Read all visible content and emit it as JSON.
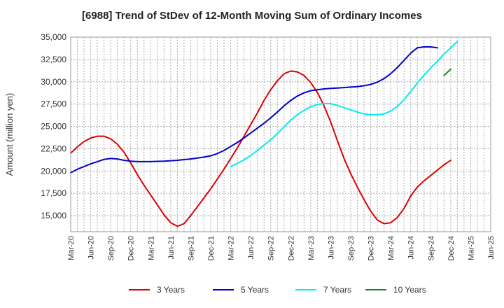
{
  "chart_data": {
    "type": "line",
    "title": "[6988]  Trend of StDev of 12-Month Moving Sum of Ordinary Incomes",
    "xlabel": "",
    "ylabel": "Amount (million yen)",
    "ylim": [
      13200,
      35000
    ],
    "y_ticks": [
      15000,
      17500,
      20000,
      22500,
      25000,
      27500,
      30000,
      32500,
      35000
    ],
    "y_tick_labels": [
      "15,000",
      "17,500",
      "20,000",
      "22,500",
      "25,000",
      "27,500",
      "30,000",
      "32,500",
      "35,000"
    ],
    "x_tick_labels": [
      "Mar-20",
      "Jun-20",
      "Sep-20",
      "Dec-20",
      "Mar-21",
      "Jun-21",
      "Sep-21",
      "Dec-21",
      "Mar-22",
      "Jun-22",
      "Sep-22",
      "Dec-22",
      "Mar-23",
      "Jun-23",
      "Sep-23",
      "Dec-23",
      "Mar-24",
      "Jun-24",
      "Sep-24",
      "Dec-24",
      "Mar-25",
      "Jun-25"
    ],
    "x_index_range": [
      0,
      63
    ],
    "grid": true,
    "legend_position": "bottom",
    "series": [
      {
        "name": "3 Years",
        "color": "#dd0000",
        "start_index": 0,
        "values": [
          22000,
          22700,
          23300,
          23700,
          23900,
          23900,
          23600,
          23000,
          22100,
          20900,
          19600,
          18400,
          17300,
          16200,
          15100,
          14200,
          13800,
          14100,
          15000,
          16000,
          17000,
          18000,
          19100,
          20200,
          21400,
          22600,
          23900,
          25200,
          26500,
          27900,
          29100,
          30100,
          30900,
          31200,
          31100,
          30700,
          29900,
          28800,
          27300,
          25500,
          23400,
          21400,
          19700,
          18200,
          16800,
          15500,
          14500,
          14100,
          14200,
          14800,
          15800,
          17200,
          18200,
          18900,
          19500,
          20100,
          20700,
          21200
        ]
      },
      {
        "name": "5 Years",
        "color": "#0000cc",
        "start_index": 0,
        "values": [
          19800,
          20200,
          20500,
          20800,
          21050,
          21300,
          21400,
          21350,
          21200,
          21100,
          21050,
          21050,
          21050,
          21080,
          21100,
          21150,
          21200,
          21280,
          21350,
          21450,
          21560,
          21700,
          21950,
          22300,
          22750,
          23200,
          23700,
          24250,
          24800,
          25350,
          25950,
          26600,
          27300,
          27900,
          28400,
          28750,
          29000,
          29100,
          29200,
          29250,
          29300,
          29350,
          29400,
          29450,
          29550,
          29700,
          29950,
          30350,
          30900,
          31600,
          32400,
          33200,
          33800,
          33900,
          33900,
          33800
        ]
      },
      {
        "name": "7 Years",
        "color": "#00eeee",
        "start_index": 24,
        "values": [
          20500,
          20850,
          21250,
          21750,
          22300,
          22900,
          23500,
          24200,
          24950,
          25700,
          26300,
          26800,
          27200,
          27450,
          27550,
          27550,
          27350,
          27100,
          26850,
          26600,
          26400,
          26300,
          26300,
          26400,
          26700,
          27250,
          28000,
          28900,
          29850,
          30750,
          31550,
          32300,
          33100,
          33800,
          34500
        ]
      },
      {
        "name": "10 Years",
        "color": "#228822",
        "start_index": 56,
        "values": [
          30700,
          31400
        ]
      }
    ]
  }
}
